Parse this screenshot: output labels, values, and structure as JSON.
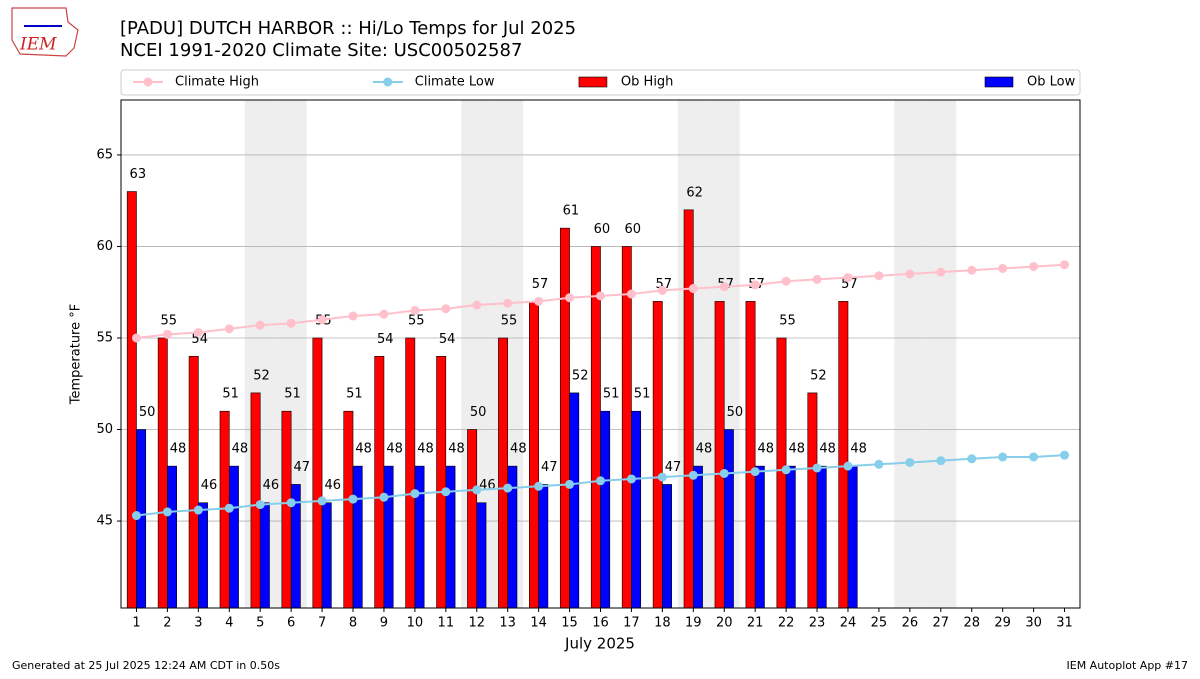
{
  "logo_text": "IEM",
  "footer_left": "Generated at 25 Jul 2025 12:24 AM CDT in 0.50s",
  "footer_right": "IEM Autoplot App #17",
  "chart_data": {
    "type": "bar",
    "title": "[PADU] DUTCH HARBOR :: Hi/Lo Temps for Jul 2025",
    "subtitle": "NCEI 1991-2020 Climate Site: USC00502587",
    "xlabel": "July 2025",
    "ylabel": "Temperature °F",
    "x": [
      1,
      2,
      3,
      4,
      5,
      6,
      7,
      8,
      9,
      10,
      11,
      12,
      13,
      14,
      15,
      16,
      17,
      18,
      19,
      20,
      21,
      22,
      23,
      24,
      25,
      26,
      27,
      28,
      29,
      30,
      31
    ],
    "xticks": [
      1,
      2,
      3,
      4,
      5,
      6,
      7,
      8,
      9,
      10,
      11,
      12,
      13,
      14,
      15,
      16,
      17,
      18,
      19,
      20,
      21,
      22,
      23,
      24,
      25,
      26,
      27,
      28,
      29,
      30,
      31
    ],
    "xlim": [
      0.5,
      31.5
    ],
    "ylim": [
      40.25,
      68
    ],
    "yticks": [
      45,
      50,
      55,
      60,
      65
    ],
    "grid": true,
    "shaded_days": [
      5,
      6,
      12,
      13,
      19,
      20,
      26,
      27
    ],
    "shade_color": "#eeeeee",
    "legend": "top",
    "series": [
      {
        "name": "Climate High",
        "kind": "line",
        "color": "pink",
        "values": [
          55.0,
          55.2,
          55.3,
          55.5,
          55.7,
          55.8,
          56.0,
          56.2,
          56.3,
          56.5,
          56.6,
          56.8,
          56.9,
          57.0,
          57.2,
          57.3,
          57.4,
          57.6,
          57.7,
          57.8,
          57.9,
          58.1,
          58.2,
          58.3,
          58.4,
          58.5,
          58.6,
          58.7,
          58.8,
          58.9,
          59.0
        ]
      },
      {
        "name": "Climate Low",
        "kind": "line",
        "color": "skyblue",
        "values": [
          45.3,
          45.5,
          45.6,
          45.7,
          45.9,
          46.0,
          46.1,
          46.2,
          46.3,
          46.5,
          46.6,
          46.7,
          46.8,
          46.9,
          47.0,
          47.2,
          47.3,
          47.4,
          47.5,
          47.6,
          47.7,
          47.8,
          47.9,
          48.0,
          48.1,
          48.2,
          48.3,
          48.4,
          48.5,
          48.5,
          48.6
        ]
      },
      {
        "name": "Ob High",
        "kind": "bar",
        "color": "red",
        "values": [
          63,
          55,
          54,
          51,
          52,
          51,
          55,
          51,
          54,
          55,
          54,
          50,
          55,
          57,
          61,
          60,
          60,
          57,
          62,
          57,
          57,
          55,
          52,
          57,
          null,
          null,
          null,
          null,
          null,
          null,
          null
        ]
      },
      {
        "name": "Ob Low",
        "kind": "bar",
        "color": "blue",
        "values": [
          50,
          48,
          46,
          48,
          46,
          47,
          46,
          48,
          48,
          48,
          48,
          46,
          48,
          47,
          52,
          51,
          51,
          47,
          48,
          50,
          48,
          48,
          48,
          48,
          null,
          null,
          null,
          null,
          null,
          null,
          null
        ]
      }
    ]
  }
}
